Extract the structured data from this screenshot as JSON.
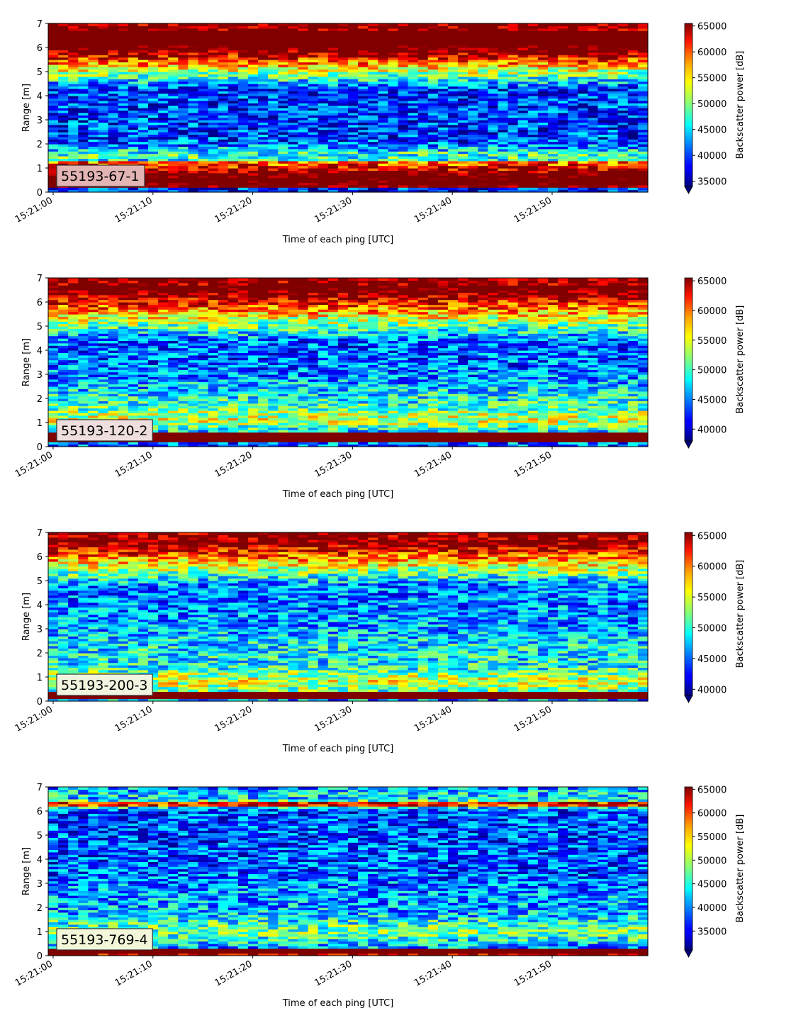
{
  "chart_data": [
    {
      "type": "heatmap",
      "label": "55193-67-1",
      "label_color": "#e2b4b4",
      "profile": "strong",
      "xlabel": "Time of each ping [UTC]",
      "ylabel": "Range [m]",
      "cbar_label": "Backscatter power [dB]",
      "x_ticks": [
        "15:21:00",
        "15:21:10",
        "15:21:20",
        "15:21:30",
        "15:21:40",
        "15:21:50"
      ],
      "y_ticks": [
        0,
        1,
        2,
        3,
        4,
        5,
        6,
        7
      ],
      "ylim": [
        0,
        7
      ],
      "clim": [
        34000,
        65500
      ],
      "cbar_ticks": [
        35000,
        40000,
        45000,
        50000,
        55000,
        60000,
        65000
      ]
    },
    {
      "type": "heatmap",
      "label": "55193-120-2",
      "label_color": "#eedede",
      "profile": "medium",
      "xlabel": "Time of each ping [UTC]",
      "ylabel": "Range [m]",
      "cbar_label": "Backscatter power [dB]",
      "x_ticks": [
        "15:21:00",
        "15:21:10",
        "15:21:20",
        "15:21:30",
        "15:21:40",
        "15:21:50"
      ],
      "y_ticks": [
        0,
        1,
        2,
        3,
        4,
        5,
        6,
        7
      ],
      "ylim": [
        0,
        7
      ],
      "clim": [
        38000,
        65500
      ],
      "cbar_ticks": [
        40000,
        45000,
        50000,
        55000,
        60000,
        65000
      ]
    },
    {
      "type": "heatmap",
      "label": "55193-200-3",
      "label_color": "#f1f5df",
      "profile": "weak",
      "xlabel": "Time of each ping [UTC]",
      "ylabel": "Range [m]",
      "cbar_label": "Backscatter power [dB]",
      "x_ticks": [
        "15:21:00",
        "15:21:10",
        "15:21:20",
        "15:21:30",
        "15:21:40",
        "15:21:50"
      ],
      "y_ticks": [
        0,
        1,
        2,
        3,
        4,
        5,
        6,
        7
      ],
      "ylim": [
        0,
        7
      ],
      "clim": [
        39000,
        65500
      ],
      "cbar_ticks": [
        40000,
        45000,
        50000,
        55000,
        60000,
        65000
      ]
    },
    {
      "type": "heatmap",
      "label": "55193-769-4",
      "label_color": "#f3f7da",
      "profile": "deep",
      "xlabel": "Time of each ping [UTC]",
      "ylabel": "Range [m]",
      "cbar_label": "Backscatter power [dB]",
      "x_ticks": [
        "15:21:00",
        "15:21:10",
        "15:21:20",
        "15:21:30",
        "15:21:40",
        "15:21:50"
      ],
      "y_ticks": [
        0,
        1,
        2,
        3,
        4,
        5,
        6,
        7
      ],
      "ylim": [
        0,
        7
      ],
      "clim": [
        31000,
        65500
      ],
      "cbar_ticks": [
        35000,
        40000,
        45000,
        50000,
        55000,
        60000,
        65000
      ]
    }
  ]
}
